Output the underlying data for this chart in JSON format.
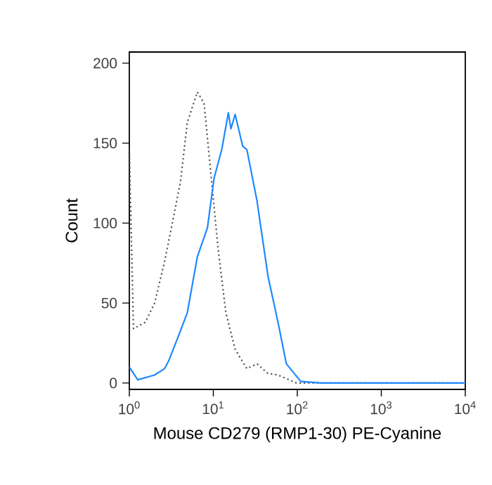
{
  "chart_data": {
    "type": "line",
    "xlabel": "Mouse CD279 (RMP1-30) PE-Cyanine",
    "ylabel": "Count",
    "log": "x",
    "xlim": [
      1,
      10000
    ],
    "ylim": [
      -4,
      207
    ],
    "xticks": [
      {
        "value": 1,
        "label": "10$^{0}$"
      },
      {
        "value": 10,
        "label": "10$^{1}$"
      },
      {
        "value": 100,
        "label": "10$^{2}$"
      },
      {
        "value": 1000,
        "label": "10$^{3}$"
      },
      {
        "value": 10000,
        "label": "10$^{4}$"
      }
    ],
    "yticks": [
      0,
      50,
      100,
      150,
      200
    ],
    "marker": "none",
    "series": [
      {
        "color": "#555555",
        "line_style": "dotted",
        "x": [
          1,
          1.12,
          1.55,
          2.0,
          2.63,
          3.31,
          4.07,
          4.9,
          6.46,
          7.76,
          9.55,
          11.5,
          14.1,
          18.2,
          25.1,
          33.1,
          44.7,
          58.9,
          97.7,
          10000
        ],
        "values": [
          146,
          34,
          38,
          50,
          76,
          102,
          126,
          163,
          182,
          175,
          126,
          82,
          44,
          21,
          9,
          12,
          6,
          5,
          0,
          0
        ]
      },
      {
        "color": "#1e88ff",
        "line_style": "solid",
        "x": [
          1,
          1.26,
          2.0,
          2.63,
          2.95,
          3.89,
          4.9,
          6.46,
          8.51,
          10.2,
          12.6,
          15.1,
          16.2,
          18.2,
          22.4,
          25.1,
          33.1,
          44.7,
          58.9,
          74.1,
          110,
          191,
          10000
        ],
        "values": [
          10,
          2,
          5,
          9,
          14,
          30,
          44,
          79,
          97,
          128,
          146,
          169,
          159,
          168,
          148,
          146,
          114,
          67,
          38,
          12,
          1,
          0,
          0
        ]
      }
    ]
  }
}
